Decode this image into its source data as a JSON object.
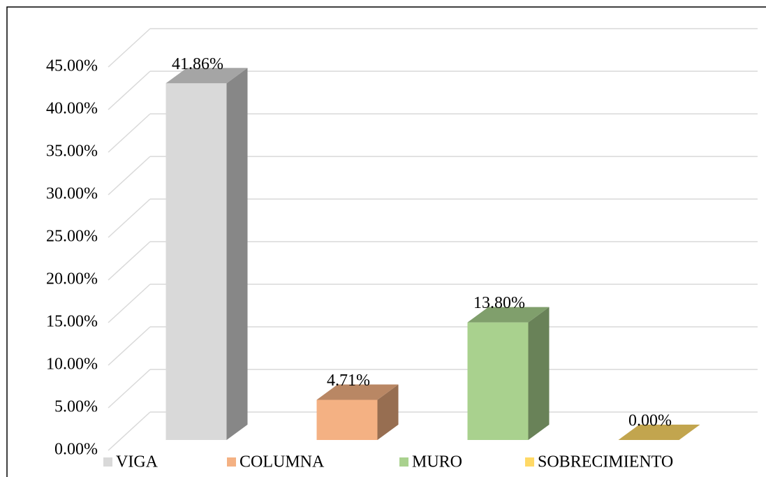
{
  "chart_data": {
    "type": "bar3d",
    "categories": [
      "VIGA",
      "COLUMNA",
      "MURO",
      "SOBRECIMIENTO"
    ],
    "values": [
      41.86,
      4.71,
      13.8,
      0.0
    ],
    "value_labels": [
      "41.86%",
      "4.71%",
      "13.80%",
      "0.00%"
    ],
    "colors": [
      "#d9d9d9",
      "#f4b183",
      "#a9d18e",
      "#ffd966"
    ],
    "ylim": [
      0,
      45
    ],
    "yticks": [
      {
        "value": 0,
        "label": "0.00%"
      },
      {
        "value": 5,
        "label": "5.00%"
      },
      {
        "value": 10,
        "label": "10.00%"
      },
      {
        "value": 15,
        "label": "15.00%"
      },
      {
        "value": 20,
        "label": "20.00%"
      },
      {
        "value": 25,
        "label": "25.00%"
      },
      {
        "value": 30,
        "label": "30.00%"
      },
      {
        "value": 35,
        "label": "35.00%"
      },
      {
        "value": 40,
        "label": "40.00%"
      },
      {
        "value": 45,
        "label": "45.00%"
      }
    ],
    "grid": true,
    "legend": "bottom"
  }
}
